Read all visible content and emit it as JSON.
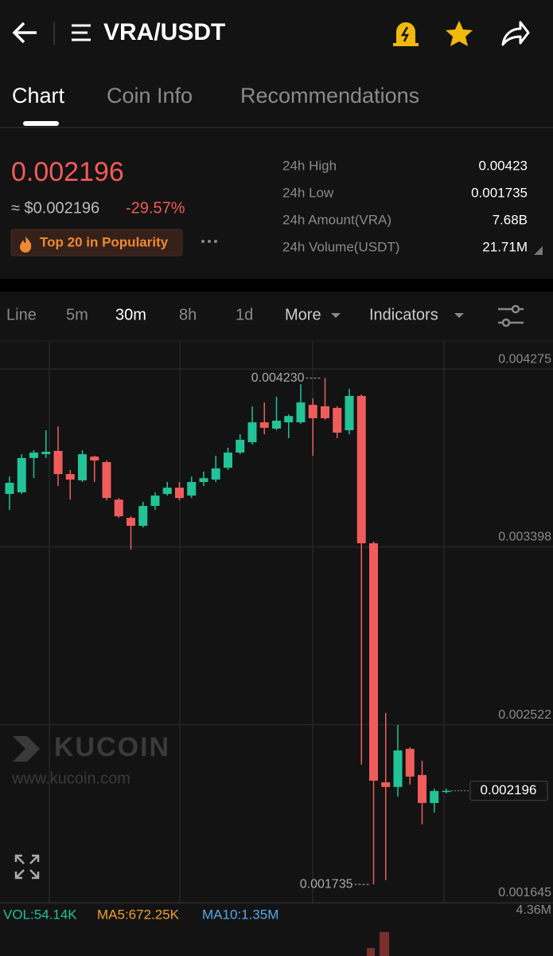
{
  "header": {
    "title": "VRA/USDT"
  },
  "tabs": [
    "Chart",
    "Coin Info",
    "Recommendations"
  ],
  "summary": {
    "price": "0.002196",
    "usd_price": "≈ $0.002196",
    "change": "-29.57%",
    "badge": "Top 20 in Popularity",
    "stats": [
      {
        "label": "24h High",
        "value": "0.00423"
      },
      {
        "label": "24h Low",
        "value": "0.001735"
      },
      {
        "label": "24h Amount(VRA)",
        "value": "7.68B"
      },
      {
        "label": "24h Volume(USDT)",
        "value": "21.71M"
      }
    ]
  },
  "timeframes": [
    "Line",
    "5m",
    "30m",
    "8h",
    "1d",
    "More",
    "Indicators"
  ],
  "watermark": {
    "brand": "KUCOIN",
    "url": "www.kucoin.com"
  },
  "volume_bar": {
    "vol": "VOL:54.14K",
    "ma5": "MA5:672.25K",
    "ma10": "MA10:1.35M",
    "max": "4.36M"
  },
  "chart_data": {
    "type": "candlestick",
    "up_color": "#21c397",
    "down_color": "#f05c5c",
    "grid": true,
    "ylim": [
      0.001645,
      0.004405
    ],
    "yticks": [
      0.001645,
      0.002522,
      0.003398,
      0.004275
    ],
    "high_label": "0.004230",
    "open": [
      0.003659,
      0.003667,
      0.003836,
      0.003855,
      0.003871,
      0.003757,
      0.003726,
      0.003843,
      0.003816,
      0.003631,
      0.003541,
      0.003502,
      0.0036,
      0.003659,
      0.00369,
      0.003651,
      0.003718,
      0.00373,
      0.003788,
      0.003863,
      0.003914,
      0.004012,
      0.003981,
      0.004012,
      0.004012,
      0.004098,
      0.004091,
      0.004083,
      0.003973,
      0.004142,
      0.003416,
      0.002238,
      0.002215,
      0.002403,
      0.002274,
      0.002136,
      0.002195
    ],
    "high": [
      0.003745,
      0.003855,
      0.003875,
      0.003973,
      0.003992,
      0.003777,
      0.003875,
      0.003847,
      0.003824,
      0.003639,
      0.003549,
      0.00362,
      0.003667,
      0.003718,
      0.003718,
      0.003745,
      0.003769,
      0.003847,
      0.003887,
      0.003953,
      0.004091,
      0.00411,
      0.004138,
      0.004051,
      0.0042,
      0.00413,
      0.00423,
      0.004091,
      0.004177,
      0.004149,
      0.003424,
      0.00258,
      0.002521,
      0.002411,
      0.002344,
      0.002207,
      0.002207
    ],
    "low": [
      0.00358,
      0.003659,
      0.003737,
      0.003836,
      0.003698,
      0.003631,
      0.003718,
      0.003718,
      0.003628,
      0.003541,
      0.003384,
      0.003494,
      0.00358,
      0.003651,
      0.003628,
      0.003639,
      0.003698,
      0.003718,
      0.003777,
      0.003855,
      0.003902,
      0.003953,
      0.003973,
      0.003934,
      0.004004,
      0.003847,
      0.004024,
      0.003934,
      0.003953,
      0.002325,
      0.001735,
      0.001756,
      0.002168,
      0.002227,
      0.002031,
      0.002089,
      0.002184
    ],
    "close": [
      0.003714,
      0.003836,
      0.003863,
      0.003867,
      0.003757,
      0.00373,
      0.003855,
      0.003824,
      0.003639,
      0.003549,
      0.003502,
      0.0036,
      0.003651,
      0.00369,
      0.003639,
      0.003718,
      0.003737,
      0.003785,
      0.003863,
      0.003926,
      0.004012,
      0.003985,
      0.00402,
      0.004043,
      0.00411,
      0.004032,
      0.004032,
      0.003961,
      0.004142,
      0.003416,
      0.002246,
      0.002215,
      0.002395,
      0.002266,
      0.002136,
      0.002195,
      0.002196
    ]
  }
}
